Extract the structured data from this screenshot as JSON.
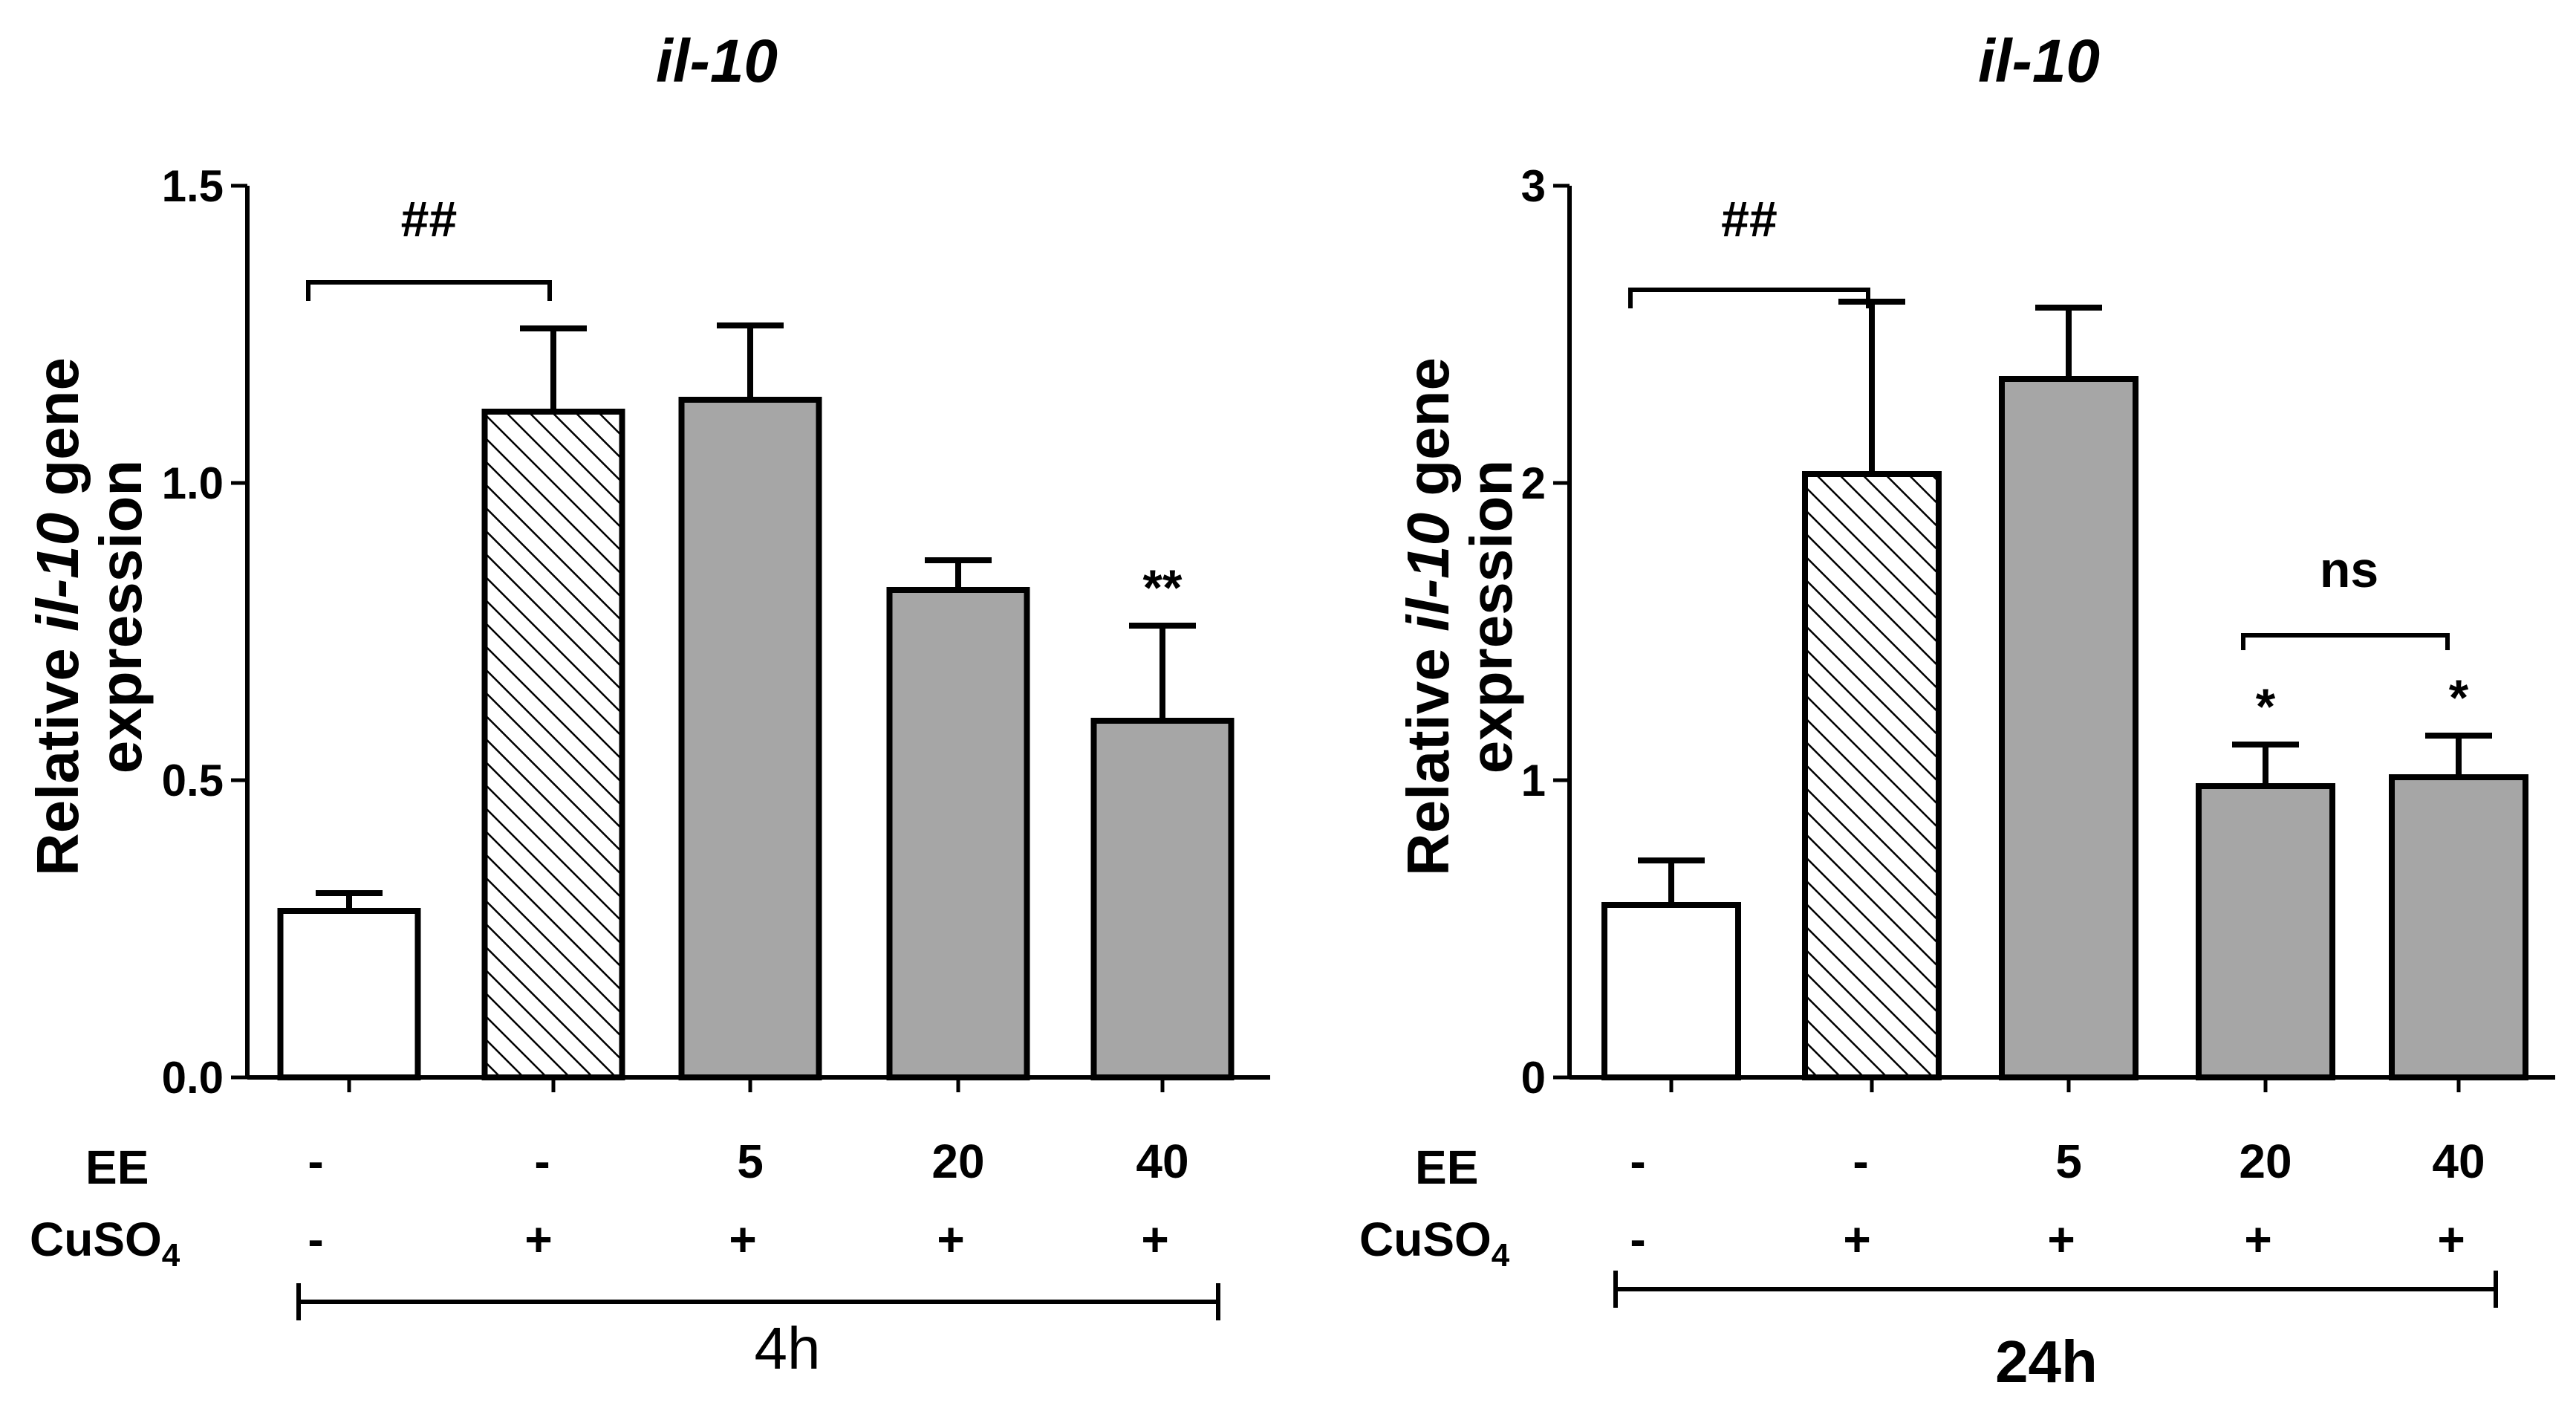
{
  "chart_data": [
    {
      "type": "bar",
      "title": "il-10",
      "ylabel": "Relative il-10 gene expression",
      "ylabel_parts": {
        "line1_pre": "Relative ",
        "line1_italic": "il-10",
        "line1_post": " gene",
        "line2": "expression"
      },
      "ylim": [
        0,
        1.5
      ],
      "yticks": [
        0.0,
        0.5,
        1.0,
        1.5
      ],
      "ytick_labels": [
        "0.0",
        "0.5",
        "1.0",
        "1.5"
      ],
      "grid": false,
      "series": [
        {
          "name": "Relative il-10 gene expression",
          "values": [
            0.28,
            1.12,
            1.14,
            0.82,
            0.6
          ],
          "errors": [
            0.03,
            0.14,
            0.125,
            0.05,
            0.16
          ]
        }
      ],
      "bar_styles": [
        "white",
        "hatched",
        "gray",
        "gray",
        "gray"
      ],
      "conditions": {
        "row1_label": "EE",
        "row1": [
          "-",
          "-",
          "5",
          "20",
          "40"
        ],
        "row2_label": "CuSO",
        "row2_label_sub": "4",
        "row2": [
          "-",
          "+",
          "+",
          "+",
          "+"
        ]
      },
      "time_label": "4h",
      "annotations": {
        "bracket_0_1": "##",
        "bar_4": "**"
      }
    },
    {
      "type": "bar",
      "title": "il-10",
      "ylabel": "Relative il-10 gene expression",
      "ylabel_parts": {
        "line1_pre": "Relative ",
        "line1_italic": "il-10",
        "line1_post": " gene",
        "line2": "expression"
      },
      "ylim": [
        0,
        3
      ],
      "yticks": [
        0,
        1,
        2,
        3
      ],
      "ytick_labels": [
        "0",
        "1",
        "2",
        "3"
      ],
      "grid": false,
      "series": [
        {
          "name": "Relative il-10 gene expression",
          "values": [
            0.58,
            2.03,
            2.35,
            0.98,
            1.01
          ],
          "errors": [
            0.15,
            0.58,
            0.24,
            0.14,
            0.14
          ]
        }
      ],
      "bar_styles": [
        "white",
        "hatched",
        "gray",
        "gray",
        "gray"
      ],
      "conditions": {
        "row1_label": "EE",
        "row1": [
          "-",
          "-",
          "5",
          "20",
          "40"
        ],
        "row2_label": "CuSO",
        "row2_label_sub": "4",
        "row2": [
          "-",
          "+",
          "+",
          "+",
          "+"
        ]
      },
      "time_label": "24h",
      "annotations": {
        "bracket_0_1": "##",
        "bar_3": "*",
        "bar_4": "*",
        "bracket_3_4": "ns"
      }
    }
  ],
  "colors": {
    "gray_bar": "#a6a6a6",
    "white_bar": "#ffffff",
    "ink": "#000000"
  }
}
